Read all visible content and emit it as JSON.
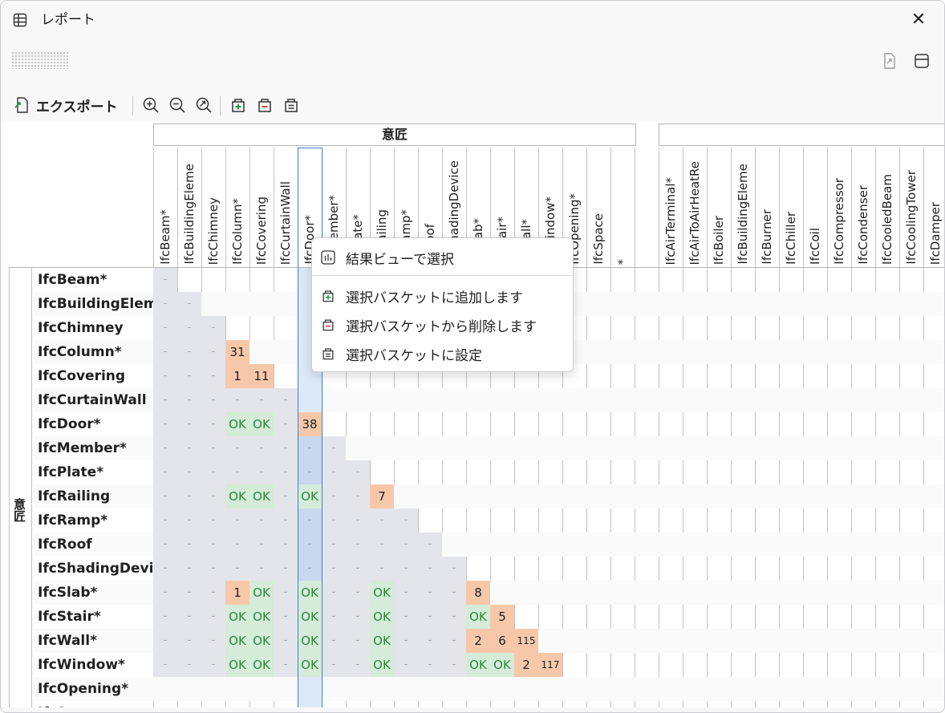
{
  "window": {
    "title": "レポート",
    "icon": "table-icon",
    "close_label": "✕"
  },
  "topright": {
    "icons": [
      "export-doc-icon",
      "layout-icon"
    ]
  },
  "toolbar": {
    "export_label": "エクスポート",
    "icons": [
      "export-icon",
      "zoom-in-icon",
      "zoom-out-icon",
      "zoom-reset-icon",
      "basket-add-icon",
      "basket-remove-icon",
      "basket-set-icon"
    ]
  },
  "matrix": {
    "group1_label": "意匠",
    "group2_label": "",
    "row_group_label": "意匠",
    "columns1": [
      "IfcBeam*",
      "IfcBuildingEleme",
      "IfcChimney",
      "IfcColumn*",
      "IfcCovering",
      "IfcCurtainWall",
      "IfcDoor*",
      "IfcMember*",
      "IfcPlate*",
      "IfcRailing",
      "IfcRamp*",
      "IfcRoof",
      "IfcShadingDevice",
      "IfcSlab*",
      "IfcStair*",
      "IfcWall*",
      "IfcWindow*",
      "IfcOpening*",
      "IfcSpace",
      "*"
    ],
    "columns2": [
      "IfcAirTerminal*",
      "IfcAirToAirHeatRe",
      "IfcBoiler",
      "IfcBuildingEleme",
      "IfcBurner",
      "IfcChiller",
      "IfcCoil",
      "IfcCompressor",
      "IfcCondenser",
      "IfcCooledBeam",
      "IfcCoolingTower",
      "IfcDamper"
    ],
    "rows": [
      {
        "label": "IfcBeam*",
        "cells": [
          "-"
        ]
      },
      {
        "label": "IfcBuildingEleme",
        "cells": [
          "-",
          "-"
        ]
      },
      {
        "label": "IfcChimney",
        "cells": [
          "-",
          "-",
          "-"
        ]
      },
      {
        "label": "IfcColumn*",
        "cells": [
          "-",
          "-",
          "-",
          "31"
        ]
      },
      {
        "label": "IfcCovering",
        "cells": [
          "-",
          "-",
          "-",
          "1",
          "11"
        ]
      },
      {
        "label": "IfcCurtainWall",
        "cells": [
          "-",
          "-",
          "-",
          "-",
          "-",
          "-"
        ]
      },
      {
        "label": "IfcDoor*",
        "cells": [
          "-",
          "-",
          "-",
          "OK",
          "OK",
          "-",
          "38"
        ]
      },
      {
        "label": "IfcMember*",
        "cells": [
          "-",
          "-",
          "-",
          "-",
          "-",
          "-",
          "-",
          "-"
        ]
      },
      {
        "label": "IfcPlate*",
        "cells": [
          "-",
          "-",
          "-",
          "-",
          "-",
          "-",
          "-",
          "-",
          "-"
        ]
      },
      {
        "label": "IfcRailing",
        "cells": [
          "-",
          "-",
          "-",
          "OK",
          "OK",
          "-",
          "OK",
          "-",
          "-",
          "7"
        ]
      },
      {
        "label": "IfcRamp*",
        "cells": [
          "-",
          "-",
          "-",
          "-",
          "-",
          "-",
          "-",
          "-",
          "-",
          "-",
          "-"
        ]
      },
      {
        "label": "IfcRoof",
        "cells": [
          "-",
          "-",
          "-",
          "-",
          "-",
          "-",
          "-",
          "-",
          "-",
          "-",
          "-",
          "-"
        ]
      },
      {
        "label": "IfcShadingDevice",
        "cells": [
          "-",
          "-",
          "-",
          "-",
          "-",
          "-",
          "-",
          "-",
          "-",
          "-",
          "-",
          "-",
          "-"
        ]
      },
      {
        "label": "IfcSlab*",
        "cells": [
          "-",
          "-",
          "-",
          "1",
          "OK",
          "-",
          "OK",
          "-",
          "-",
          "OK",
          "-",
          "-",
          "-",
          "8"
        ]
      },
      {
        "label": "IfcStair*",
        "cells": [
          "-",
          "-",
          "-",
          "OK",
          "OK",
          "-",
          "OK",
          "-",
          "-",
          "OK",
          "-",
          "-",
          "-",
          "OK",
          "5"
        ]
      },
      {
        "label": "IfcWall*",
        "cells": [
          "-",
          "-",
          "-",
          "OK",
          "OK",
          "-",
          "OK",
          "-",
          "-",
          "OK",
          "-",
          "-",
          "-",
          "2",
          "6",
          "115"
        ]
      },
      {
        "label": "IfcWindow*",
        "cells": [
          "-",
          "-",
          "-",
          "OK",
          "OK",
          "-",
          "OK",
          "-",
          "-",
          "OK",
          "-",
          "-",
          "-",
          "OK",
          "OK",
          "2",
          "117"
        ]
      },
      {
        "label": "IfcOpening*",
        "cells": []
      },
      {
        "label": "IfcSpace",
        "cells": []
      }
    ],
    "selected_column": "IfcDoor*"
  },
  "context_menu": {
    "items": [
      {
        "label": "結果ビューで選択",
        "icon": "result-view-icon"
      },
      {
        "label": "選択バスケットに追加します",
        "icon": "basket-add-icon"
      },
      {
        "label": "選択バスケットから削除します",
        "icon": "basket-remove-icon"
      },
      {
        "label": "選択バスケットに設定",
        "icon": "basket-set-icon"
      }
    ]
  },
  "colors": {
    "ok_bg": "#d5ecd8",
    "ok_text": "#2c8a3c",
    "count_bg": "#f6c8a9",
    "diag_bg": "#e4e5ea",
    "selection": "#3b7ddd"
  }
}
